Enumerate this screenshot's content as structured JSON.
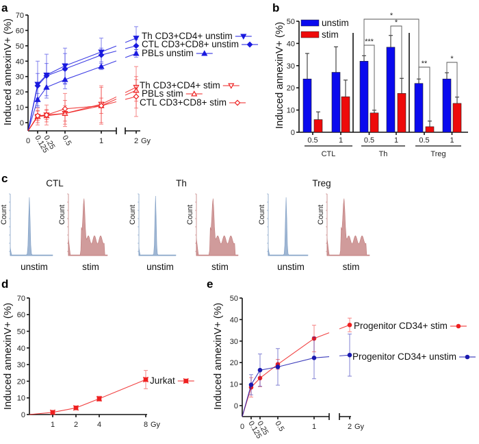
{
  "panel_letters": [
    "a",
    "b",
    "c",
    "d",
    "e"
  ],
  "chart_data": [
    {
      "id": "a",
      "type": "line",
      "ylabel": "Induced annexinV+ (%)",
      "ylim": [
        -5,
        70
      ],
      "yticks": [
        0,
        10,
        20,
        30,
        40,
        50,
        60,
        70
      ],
      "x": [
        0.125,
        0.25,
        0.5,
        1,
        2
      ],
      "xtick_labels": [
        "0",
        "0.125",
        "0.25",
        "0.5",
        "1",
        "2"
      ],
      "x_unit": "Gy",
      "series": [
        {
          "name": "Th CD3+CD4+ unstim",
          "color": "#1a1adf",
          "values": [
            25,
            31,
            37,
            46,
            55
          ],
          "err": [
            15,
            13.5,
            11.5,
            9,
            7.5
          ]
        },
        {
          "name": "CTL CD3+CD8+ unstim",
          "color": "#1a1adf",
          "values": [
            24,
            30.5,
            35,
            44,
            50
          ],
          "err": [
            8,
            8,
            10,
            4.5,
            4
          ]
        },
        {
          "name": "PBLs unstim",
          "color": "#1a1adf",
          "values": [
            15,
            23,
            28,
            36.5,
            45
          ],
          "err": [
            4,
            7,
            6,
            2,
            2.5
          ]
        },
        {
          "name": "Th CD3+CD4+ stim",
          "color": "#ee2020",
          "values": [
            4,
            5,
            6,
            12,
            23
          ],
          "err": [
            5.5,
            6.5,
            8.5,
            12,
            13.5
          ]
        },
        {
          "name": "PBLs stim",
          "color": "#ee2020",
          "values": [
            4,
            4.5,
            6,
            11,
            21
          ],
          "err": [
            4,
            4,
            5,
            5,
            7
          ]
        },
        {
          "name": "CTL CD3+CD8+ stim",
          "color": "#ee2020",
          "values": [
            4.5,
            5,
            9,
            11,
            17
          ],
          "err": [
            3,
            3,
            10,
            12,
            13
          ]
        }
      ]
    },
    {
      "id": "b",
      "type": "bar",
      "ylabel": "Induced annexinV+ (%)",
      "ylim": [
        0,
        50
      ],
      "yticks": [
        0,
        10,
        20,
        30,
        40,
        50
      ],
      "categories": [
        "0.5",
        "1",
        "0.5",
        "1",
        "0.5",
        "1"
      ],
      "groups": [
        "CTL",
        "Th",
        "Treg"
      ],
      "series": [
        {
          "name": "unstim",
          "color": "#0a0aee",
          "values": [
            24,
            27,
            32,
            38.3,
            22,
            24
          ],
          "err": [
            11.5,
            11.5,
            2.5,
            5.3,
            2,
            2.8
          ]
        },
        {
          "name": "stim",
          "color": "#ee0a0a",
          "values": [
            5.7,
            16,
            8.7,
            17.5,
            2.5,
            13
          ],
          "err": [
            3.5,
            7.5,
            1.2,
            6.8,
            2.5,
            2.8
          ]
        }
      ],
      "significance": [
        {
          "label": "***",
          "from": "Th 0.5 unstim",
          "to": "Th 0.5 stim"
        },
        {
          "label": "*",
          "from": "Th 1 unstim",
          "to": "Th 1 stim"
        },
        {
          "label": "*",
          "from": "Th 0.5 unstim",
          "to": "Treg 0.5 unstim"
        },
        {
          "label": "**",
          "from": "Treg 0.5 unstim",
          "to": "Treg 0.5 stim"
        },
        {
          "label": "*",
          "from": "Treg 1 unstim",
          "to": "Treg 1 stim"
        }
      ]
    },
    {
      "id": "c",
      "type": "histogram",
      "axis_label": "Count",
      "panels": [
        {
          "title": "CTL",
          "unstim_label": "unstim",
          "stim_label": "stim"
        },
        {
          "title": "Th",
          "unstim_label": "unstim",
          "stim_label": "stim"
        },
        {
          "title": "Treg",
          "unstim_label": "unstim",
          "stim_label": "stim"
        }
      ],
      "colors": {
        "unstim": "#7f9ec4",
        "stim": "#c07a7a"
      }
    },
    {
      "id": "d",
      "type": "line",
      "ylabel": "Induced annexinV+ (%)",
      "ylim": [
        0,
        70
      ],
      "yticks": [
        0,
        10,
        20,
        30,
        40,
        50,
        60,
        70
      ],
      "x": [
        1,
        2,
        4,
        8
      ],
      "xtick_labels": [
        "1",
        "2",
        "4",
        "8"
      ],
      "x_unit": "Gy",
      "series": [
        {
          "name": "Jurkat",
          "color": "#ee2020",
          "values": [
            1.3,
            4,
            9.5,
            21
          ],
          "err": [
            0.8,
            0.6,
            1.5,
            5.5
          ]
        }
      ]
    },
    {
      "id": "e",
      "type": "line",
      "ylabel": "Induced annexinV+ (%)",
      "ylim": [
        -5,
        50
      ],
      "yticks": [
        0,
        10,
        20,
        30,
        40,
        50
      ],
      "x": [
        0.125,
        0.25,
        0.5,
        1,
        2
      ],
      "xtick_labels": [
        "0",
        "0.125",
        "0.25",
        "0.5",
        "1",
        "2"
      ],
      "x_unit": "Gy",
      "series": [
        {
          "name": "Progenitor CD34+ stim",
          "color": "#ee2020",
          "values": [
            8.5,
            12.8,
            19.2,
            31.2,
            37.5
          ],
          "err": [
            4.5,
            4,
            2.3,
            6.2,
            3.2
          ]
        },
        {
          "name": "Progenitor CD34+ unstim",
          "color": "#1a1aaf",
          "values": [
            9.7,
            16.5,
            18,
            22.2,
            23.5
          ],
          "err": [
            4.7,
            7.5,
            8.5,
            9.7,
            9.8
          ]
        }
      ]
    }
  ]
}
